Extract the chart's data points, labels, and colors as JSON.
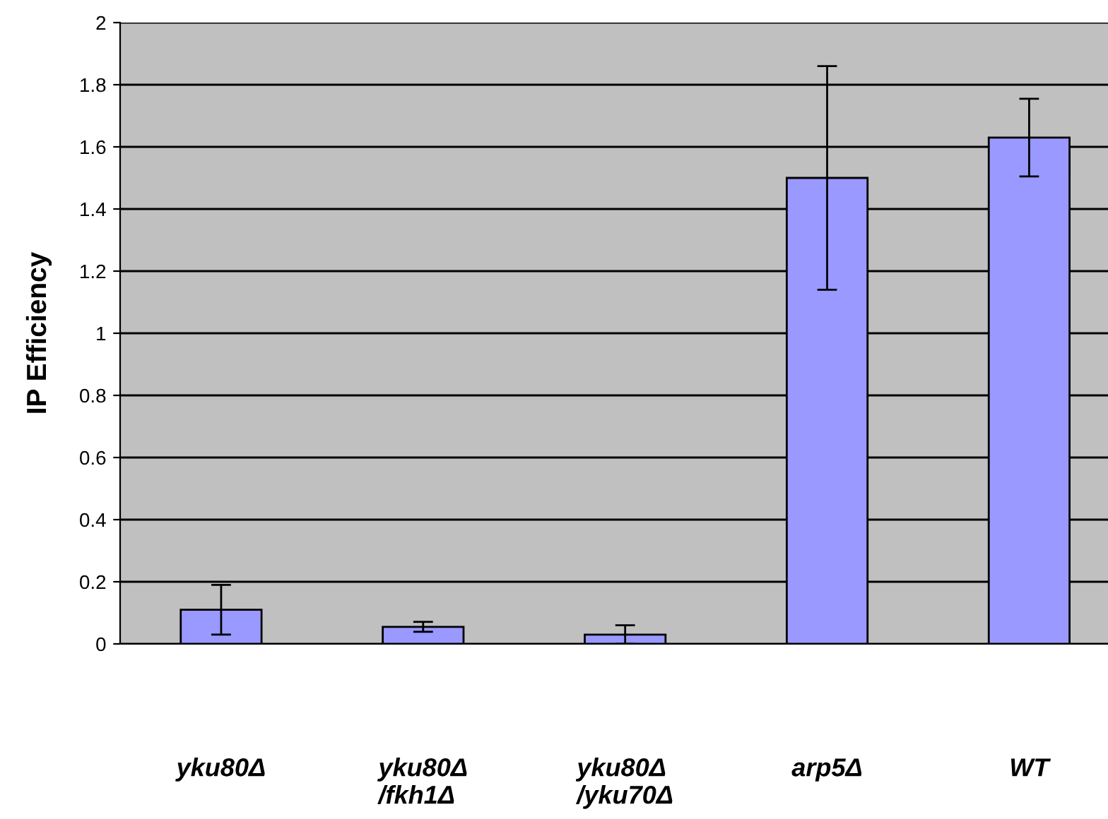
{
  "chart_data": {
    "type": "bar",
    "ylabel": "IP Efficiency",
    "categories": [
      "yku80Δ",
      "yku80Δ\n/fkh1Δ",
      "yku80Δ\n/yku70Δ",
      "arp5Δ",
      "WT"
    ],
    "values": [
      0.11,
      0.055,
      0.03,
      1.5,
      1.63
    ],
    "errors": [
      0.08,
      0.016,
      0.03,
      0.36,
      0.125
    ],
    "color": "#9999ff",
    "ylim": [
      0,
      2
    ],
    "yticks": [
      0,
      0.2,
      0.4,
      0.6,
      0.8,
      1,
      1.2,
      1.4,
      1.6,
      1.8,
      2
    ],
    "grid": "y",
    "legend": false
  }
}
